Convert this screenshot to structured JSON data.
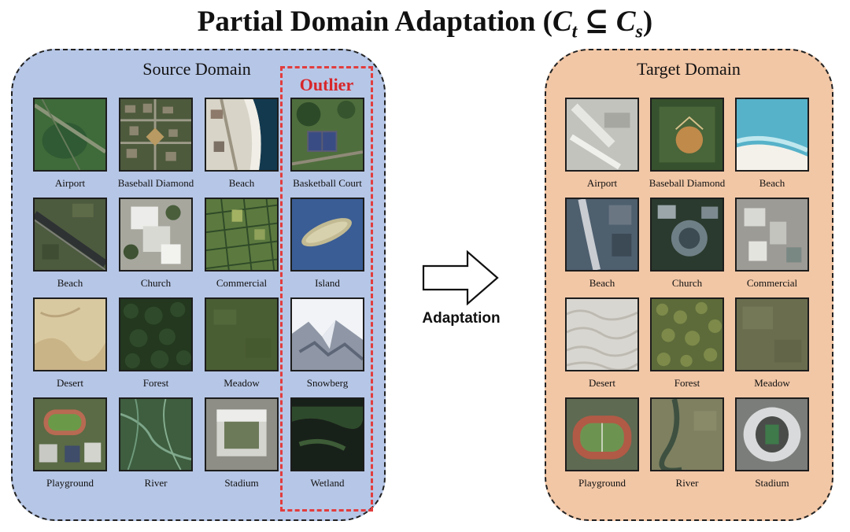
{
  "title": {
    "text": "Partial Domain Adaptation (",
    "ct": "C",
    "ct_sub": "t",
    "subset": " ⊆ ",
    "cs": "C",
    "cs_sub": "s",
    "close": ")"
  },
  "source": {
    "label": "Source Domain",
    "outlier_label": "Outlier",
    "tiles": [
      {
        "label": "Airport",
        "art": "airport-s",
        "col": 0,
        "row": 0
      },
      {
        "label": "Baseball  Diamond",
        "art": "baseball-s",
        "col": 1,
        "row": 0
      },
      {
        "label": "Beach",
        "art": "beach-s",
        "col": 2,
        "row": 0
      },
      {
        "label": "Basketball  Court",
        "art": "basketball",
        "col": 3,
        "row": 0
      },
      {
        "label": "Beach",
        "art": "beach2-s",
        "col": 0,
        "row": 1
      },
      {
        "label": "Church",
        "art": "church-s",
        "col": 1,
        "row": 1
      },
      {
        "label": "Commercial",
        "art": "commercial-s",
        "col": 2,
        "row": 1
      },
      {
        "label": "Island",
        "art": "island",
        "col": 3,
        "row": 1
      },
      {
        "label": "Desert",
        "art": "desert-s",
        "col": 0,
        "row": 2
      },
      {
        "label": "Forest",
        "art": "forest-s",
        "col": 1,
        "row": 2
      },
      {
        "label": "Meadow",
        "art": "meadow-s",
        "col": 2,
        "row": 2
      },
      {
        "label": "Snowberg",
        "art": "snowberg",
        "col": 3,
        "row": 2
      },
      {
        "label": "Playground",
        "art": "playground-s",
        "col": 0,
        "row": 3
      },
      {
        "label": "River",
        "art": "river-s",
        "col": 1,
        "row": 3
      },
      {
        "label": "Stadium",
        "art": "stadium-s",
        "col": 2,
        "row": 3
      },
      {
        "label": "Wetland",
        "art": "wetland",
        "col": 3,
        "row": 3
      }
    ]
  },
  "arrow": {
    "label": "Adaptation"
  },
  "target": {
    "label": "Target Domain",
    "tiles": [
      {
        "label": "Airport",
        "art": "airport-t",
        "col": 0,
        "row": 0
      },
      {
        "label": "Baseball  Diamond",
        "art": "baseball-t",
        "col": 1,
        "row": 0
      },
      {
        "label": "Beach",
        "art": "beach-t",
        "col": 2,
        "row": 0
      },
      {
        "label": "Beach",
        "art": "beach2-t",
        "col": 0,
        "row": 1
      },
      {
        "label": "Church",
        "art": "church-t",
        "col": 1,
        "row": 1
      },
      {
        "label": "Commercial",
        "art": "commercial-t",
        "col": 2,
        "row": 1
      },
      {
        "label": "Desert",
        "art": "desert-t",
        "col": 0,
        "row": 2
      },
      {
        "label": "Forest",
        "art": "forest-t",
        "col": 1,
        "row": 2
      },
      {
        "label": "Meadow",
        "art": "meadow-t",
        "col": 2,
        "row": 2
      },
      {
        "label": "Playground",
        "art": "playground-t",
        "col": 0,
        "row": 3
      },
      {
        "label": "River",
        "art": "river-t",
        "col": 1,
        "row": 3
      },
      {
        "label": "Stadium",
        "art": "stadium-t",
        "col": 2,
        "row": 3
      }
    ]
  }
}
